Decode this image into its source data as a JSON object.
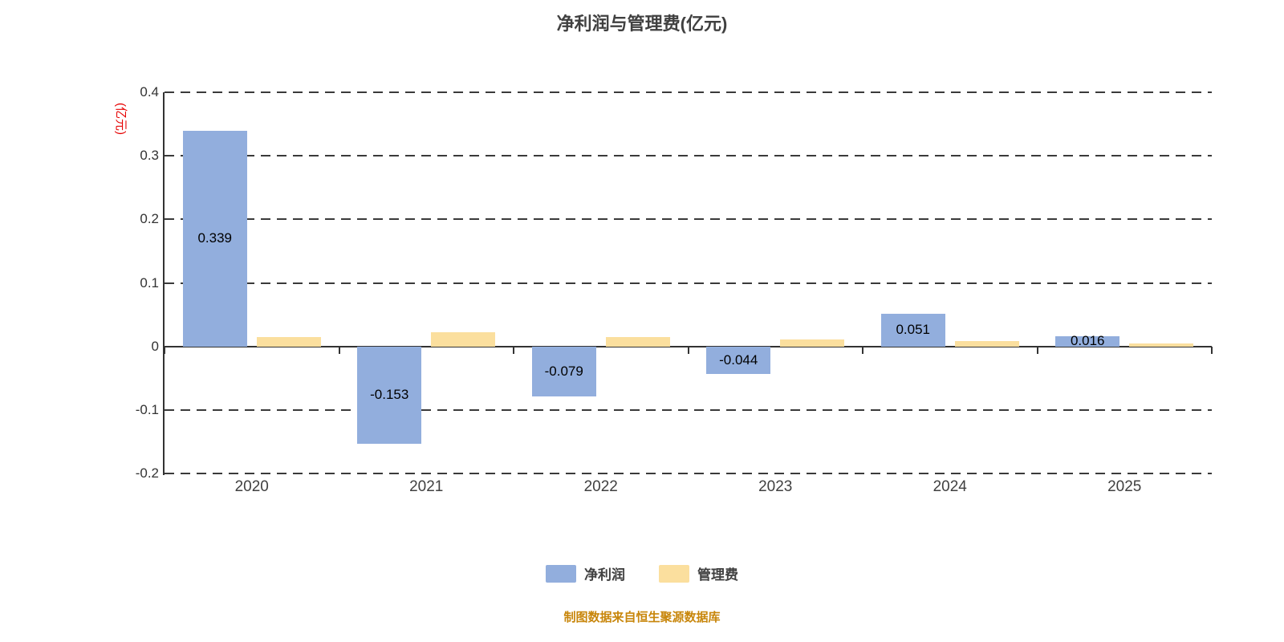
{
  "chart_data": {
    "type": "bar",
    "title": "净利润与管理费(亿元)",
    "ylabel": "(亿元)",
    "ylabel_color": "#e60000",
    "categories": [
      "2020",
      "2021",
      "2022",
      "2023",
      "2024",
      "2025"
    ],
    "series": [
      {
        "id": "net-profit",
        "name": "净利润",
        "color": "#92aedd",
        "values": [
          0.339,
          -0.153,
          -0.079,
          -0.044,
          0.051,
          0.016
        ],
        "labels": [
          "0.339",
          "-0.153",
          "-0.079",
          "-0.044",
          "0.051",
          "0.016"
        ],
        "show_labels": true
      },
      {
        "id": "management-fee",
        "name": "管理费",
        "color": "#fbdf9e",
        "values": [
          0.015,
          0.022,
          0.015,
          0.011,
          0.008,
          0.005
        ],
        "show_labels": false
      }
    ],
    "ylim": [
      -0.2,
      0.4
    ],
    "yticks": [
      -0.2,
      -0.1,
      0,
      0.1,
      0.2,
      0.3,
      0.4
    ],
    "grid": "dashed-horizontal",
    "legend_position": "bottom",
    "source": "制图数据来自恒生聚源数据库"
  }
}
